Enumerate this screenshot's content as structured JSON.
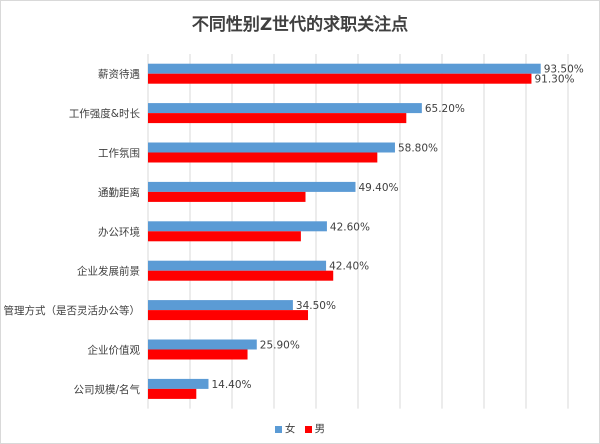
{
  "chart_data": {
    "type": "bar",
    "orientation": "horizontal",
    "title": "不同性别Z世代的求职关注点",
    "categories": [
      "薪资待遇",
      "工作强度&时长",
      "工作氛围",
      "通勤距离",
      "办公环境",
      "企业发展前景",
      "管理方式（是否灵活办公等）",
      "企业价值观",
      "公司规模/名气"
    ],
    "series": [
      {
        "name": "女",
        "color": "#5b9bd5",
        "values": [
          93.5,
          65.2,
          58.8,
          49.4,
          42.6,
          42.4,
          34.5,
          25.9,
          14.4
        ],
        "labels": [
          "93.50%",
          "65.20%",
          "58.80%",
          "49.40%",
          "42.60%",
          "42.40%",
          "34.50%",
          "25.90%",
          "14.40%"
        ]
      },
      {
        "name": "男",
        "color": "#ff0000",
        "values": [
          91.3,
          61.5,
          54.6,
          37.5,
          36.4,
          44.1,
          38.1,
          23.7,
          11.5
        ],
        "labels": [
          "91.30%",
          "",
          "",
          "",
          "",
          "",
          "",
          "",
          ""
        ]
      }
    ],
    "xlim": [
      0,
      100
    ],
    "grid": true,
    "legend_position": "bottom"
  }
}
